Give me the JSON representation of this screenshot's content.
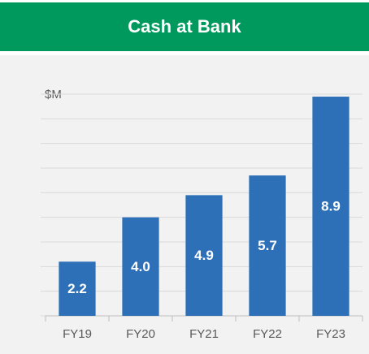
{
  "chart_data": {
    "type": "bar",
    "title": "Cash at Bank",
    "y_label": "$M",
    "categories": [
      "FY19",
      "FY20",
      "FY21",
      "FY22",
      "FY23"
    ],
    "values": [
      2.2,
      4.0,
      4.9,
      5.7,
      8.9
    ],
    "value_labels": [
      "2.2",
      "4.0",
      "4.9",
      "5.7",
      "8.9"
    ],
    "color": "#2e70b8",
    "ylim": [
      0,
      9
    ],
    "yticks": [
      0,
      1,
      2,
      3,
      4,
      5,
      6,
      7,
      8,
      9
    ],
    "grid": true
  }
}
